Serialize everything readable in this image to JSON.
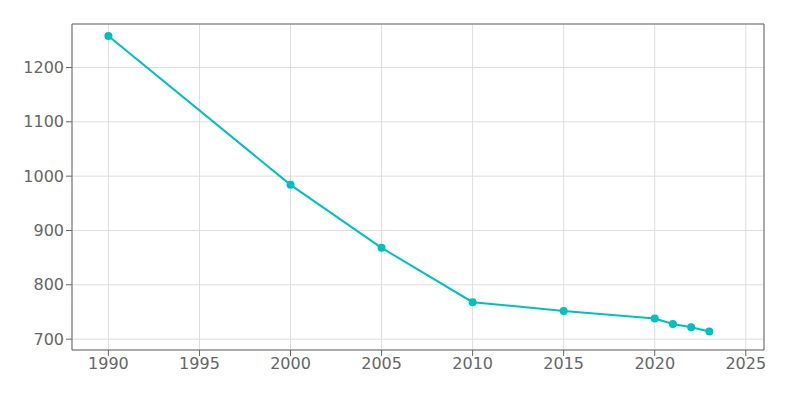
{
  "chart_data": {
    "type": "line",
    "x": [
      1990,
      2000,
      2005,
      2010,
      2015,
      2020,
      2021,
      2022,
      2023
    ],
    "values": [
      1258,
      984,
      868,
      768,
      752,
      738,
      728,
      722,
      714
    ],
    "color": "#00BFBF",
    "marker": "circle",
    "xlim": [
      1988,
      2026
    ],
    "ylim": [
      680,
      1280
    ],
    "xticks": [
      1990,
      1995,
      2000,
      2005,
      2010,
      2015,
      2020,
      2025
    ],
    "yticks": [
      700,
      800,
      900,
      1000,
      1100,
      1200
    ],
    "grid": true
  }
}
